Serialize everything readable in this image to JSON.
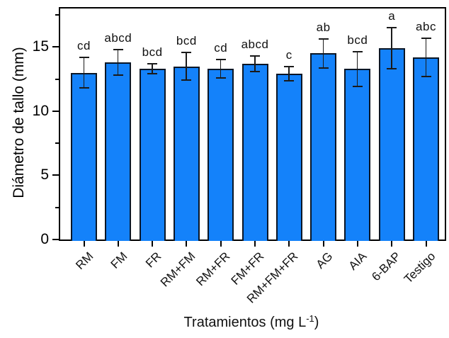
{
  "chart_data": {
    "type": "bar",
    "title": "",
    "ylabel": "Diámetro de tallo (mm)",
    "xlabel": "Tratamientos (mg L-1)",
    "xlabel_parts": {
      "prefix": "Tratamientos (mg L",
      "sup": "-1",
      "suffix": ")"
    },
    "categories": [
      "RM",
      "FM",
      "FR",
      "RM+FM",
      "RM+FR",
      "FM+FR",
      "RM+FM+FR",
      "AG",
      "AIA",
      "6-BAP",
      "Testigo"
    ],
    "values": [
      13.0,
      13.8,
      13.3,
      13.5,
      13.3,
      13.7,
      12.9,
      14.5,
      13.3,
      14.9,
      14.2
    ],
    "errors": [
      1.2,
      1.0,
      0.4,
      1.1,
      0.7,
      0.6,
      0.55,
      1.15,
      1.35,
      1.6,
      1.5
    ],
    "sig_letters": [
      "cd",
      "abcd",
      "bcd",
      "bcd",
      "cd",
      "abcd",
      "c",
      "ab",
      "bcd",
      "a",
      "abc"
    ],
    "ylim": [
      0,
      18
    ],
    "yticks_major": [
      0,
      5,
      10,
      15
    ],
    "yticks_minor": [
      2.5,
      7.5,
      12.5,
      17.5
    ],
    "grid": false,
    "legend": null,
    "bar_color": "#1482fa",
    "bar_edge_color": "#0a1626",
    "error_color": "#1a1a1a",
    "axis_color": "#000000",
    "background": "#ffffff"
  }
}
